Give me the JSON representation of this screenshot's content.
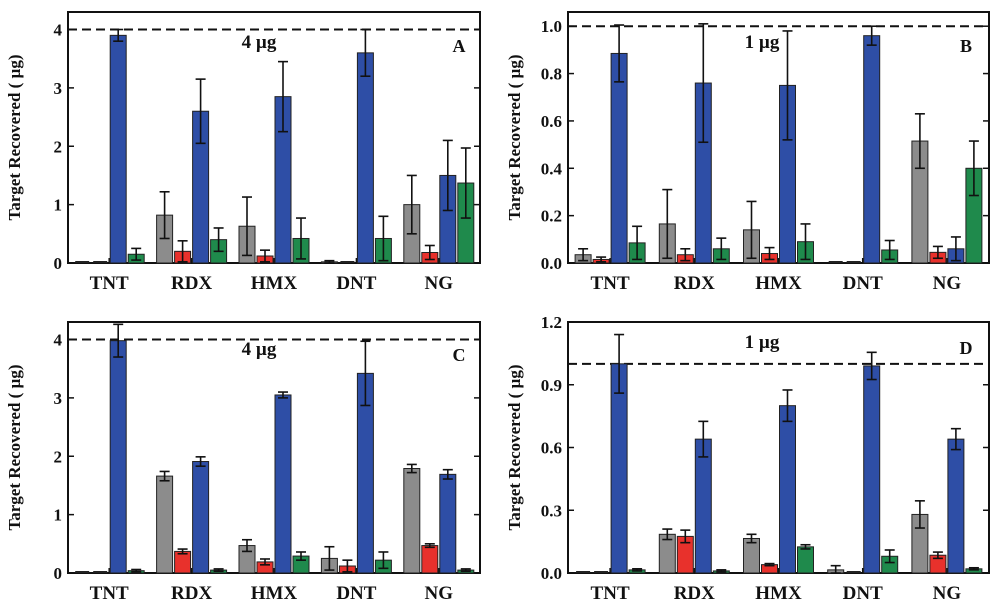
{
  "colors": {
    "gray": "#8c8c8c",
    "red": "#e8312c",
    "blue": "#2e4ea6",
    "green": "#1f8a4c"
  },
  "chart_data": [
    {
      "type": "bar",
      "panel": "A",
      "note": "4 µg",
      "ylabel": "Target Recovered ( µg)",
      "ylim": [
        0,
        4.3
      ],
      "yticks": [
        "0",
        "1",
        "2",
        "3",
        "4"
      ],
      "reference_line": 4,
      "categories": [
        "TNT",
        "RDX",
        "HMX",
        "DNT",
        "NG"
      ],
      "series": [
        {
          "name": "gray",
          "values": [
            0,
            0.82,
            0.63,
            0.02,
            1.0
          ],
          "errors": [
            0,
            0.4,
            0.5,
            0.02,
            0.5
          ]
        },
        {
          "name": "red",
          "values": [
            0,
            0.2,
            0.12,
            0,
            0.18
          ],
          "errors": [
            0,
            0.18,
            0.1,
            0,
            0.12
          ]
        },
        {
          "name": "blue",
          "values": [
            3.9,
            2.6,
            2.85,
            3.6,
            1.5
          ],
          "errors": [
            0.1,
            0.55,
            0.6,
            0.4,
            0.6
          ]
        },
        {
          "name": "green",
          "values": [
            0.15,
            0.4,
            0.42,
            0.42,
            1.37
          ],
          "errors": [
            0.1,
            0.2,
            0.35,
            0.38,
            0.6
          ]
        }
      ]
    },
    {
      "type": "bar",
      "panel": "B",
      "note": "1 µg",
      "ylabel": "Target Recovered ( µg)",
      "ylim": [
        0,
        1.06
      ],
      "yticks": [
        "0.0",
        "0.2",
        "0.4",
        "0.6",
        "0.8",
        "1.0"
      ],
      "reference_line": 1,
      "categories": [
        "TNT",
        "RDX",
        "HMX",
        "DNT",
        "NG"
      ],
      "series": [
        {
          "name": "gray",
          "values": [
            0.035,
            0.165,
            0.14,
            0,
            0.515
          ],
          "errors": [
            0.025,
            0.145,
            0.12,
            0,
            0.115
          ]
        },
        {
          "name": "red",
          "values": [
            0.015,
            0.035,
            0.04,
            0,
            0.045
          ],
          "errors": [
            0.01,
            0.025,
            0.025,
            0,
            0.025
          ]
        },
        {
          "name": "blue",
          "values": [
            0.885,
            0.76,
            0.75,
            0.96,
            0.06
          ],
          "errors": [
            0.12,
            0.25,
            0.23,
            0.04,
            0.05
          ]
        },
        {
          "name": "green",
          "values": [
            0.085,
            0.06,
            0.09,
            0.055,
            0.4
          ],
          "errors": [
            0.07,
            0.045,
            0.075,
            0.04,
            0.115
          ]
        }
      ]
    },
    {
      "type": "bar",
      "panel": "C",
      "note": "4 µg",
      "ylabel": "Target Recovered ( µg)",
      "ylim": [
        0,
        4.3
      ],
      "yticks": [
        "0",
        "1",
        "2",
        "3",
        "4"
      ],
      "reference_line": 4,
      "categories": [
        "TNT",
        "RDX",
        "HMX",
        "DNT",
        "NG"
      ],
      "series": [
        {
          "name": "gray",
          "values": [
            0,
            1.66,
            0.47,
            0.25,
            1.79
          ],
          "errors": [
            0,
            0.08,
            0.1,
            0.2,
            0.07
          ]
        },
        {
          "name": "red",
          "values": [
            0,
            0.37,
            0.19,
            0.12,
            0.47
          ],
          "errors": [
            0,
            0.04,
            0.05,
            0.1,
            0.03
          ]
        },
        {
          "name": "blue",
          "values": [
            3.98,
            1.91,
            3.05,
            3.42,
            1.69
          ],
          "errors": [
            0.28,
            0.08,
            0.05,
            0.55,
            0.08
          ]
        },
        {
          "name": "green",
          "values": [
            0.04,
            0.05,
            0.29,
            0.22,
            0.05
          ],
          "errors": [
            0.02,
            0.02,
            0.07,
            0.14,
            0.02
          ]
        }
      ]
    },
    {
      "type": "bar",
      "panel": "D",
      "note": "1 µg",
      "ylabel": "Target Recovered ( µg)",
      "ylim": [
        0,
        1.2
      ],
      "yticks": [
        "0.0",
        "0.3",
        "0.6",
        "0.9",
        "1.2"
      ],
      "reference_line": 1,
      "categories": [
        "TNT",
        "RDX",
        "HMX",
        "DNT",
        "NG"
      ],
      "series": [
        {
          "name": "gray",
          "values": [
            0,
            0.185,
            0.165,
            0.015,
            0.28
          ],
          "errors": [
            0,
            0.025,
            0.02,
            0.02,
            0.065
          ]
        },
        {
          "name": "red",
          "values": [
            0,
            0.175,
            0.04,
            0,
            0.085
          ],
          "errors": [
            0,
            0.03,
            0.005,
            0,
            0.015
          ]
        },
        {
          "name": "blue",
          "values": [
            1.0,
            0.64,
            0.8,
            0.99,
            0.64
          ],
          "errors": [
            0.14,
            0.085,
            0.075,
            0.065,
            0.05
          ]
        },
        {
          "name": "green",
          "values": [
            0.015,
            0.01,
            0.125,
            0.08,
            0.02
          ],
          "errors": [
            0.005,
            0.005,
            0.01,
            0.03,
            0.005
          ]
        }
      ]
    }
  ]
}
